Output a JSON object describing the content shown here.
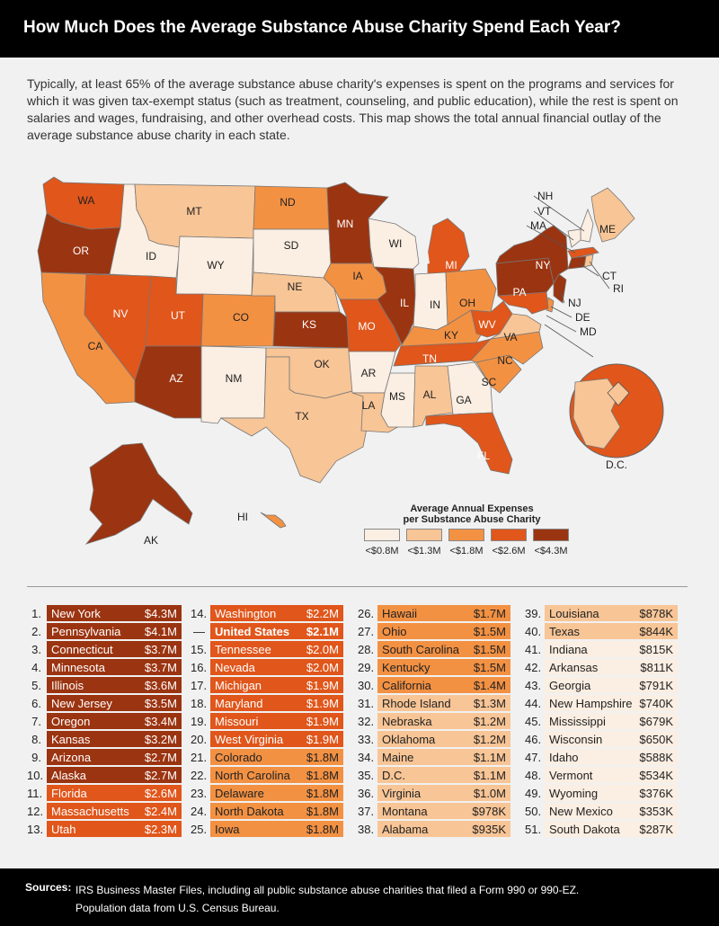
{
  "header": {
    "title": "How Much Does the Average Substance Abuse Charity Spend Each Year?"
  },
  "intro": "Typically, at least 65% of the average substance abuse charity's expenses is spent on the programs and services for which it was given tax-exempt status (such as treatment, counseling, and public education), while the rest is spent on salaries and wages, fundraising, and other overhead costs. This map shows the total annual financial outlay of the average substance abuse charity in each state.",
  "colors": {
    "tier1": "#fbeee2",
    "tier2": "#f8c596",
    "tier3": "#f39143",
    "tier4": "#e0561b",
    "tier5": "#9b3411"
  },
  "legend": {
    "title_line1": "Average Annual Expenses",
    "title_line2": "per Substance Abuse Charity",
    "labels": [
      "<$0.8M",
      "<$1.3M",
      "<$1.8M",
      "<$2.6M",
      "<$4.3M"
    ]
  },
  "map": {
    "states": [
      "WA",
      "OR",
      "CA",
      "ID",
      "NV",
      "MT",
      "WY",
      "UT",
      "AZ",
      "CO",
      "NM",
      "ND",
      "SD",
      "NE",
      "KS",
      "OK",
      "TX",
      "MN",
      "IA",
      "MO",
      "AR",
      "LA",
      "WI",
      "IL",
      "MS",
      "MI",
      "IN",
      "KY",
      "TN",
      "AL",
      "OH",
      "WV",
      "GA",
      "FL",
      "SC",
      "NC",
      "VA",
      "PA",
      "NY",
      "ME",
      "AK",
      "HI"
    ],
    "callouts": [
      "NH",
      "VT",
      "MA",
      "CT",
      "RI",
      "NJ",
      "DE",
      "MD",
      "D.C."
    ]
  },
  "chart_data": {
    "type": "table",
    "title": "How Much Does the Average Substance Abuse Charity Spend Each Year?",
    "unit": "USD per year",
    "rows": [
      {
        "rank": "1.",
        "name": "New York",
        "value": "$4.3M",
        "tier": 5
      },
      {
        "rank": "2.",
        "name": "Pennsylvania",
        "value": "$4.1M",
        "tier": 5
      },
      {
        "rank": "3.",
        "name": "Connecticut",
        "value": "$3.7M",
        "tier": 5
      },
      {
        "rank": "4.",
        "name": "Minnesota",
        "value": "$3.7M",
        "tier": 5
      },
      {
        "rank": "5.",
        "name": "Illinois",
        "value": "$3.6M",
        "tier": 5
      },
      {
        "rank": "6.",
        "name": "New Jersey",
        "value": "$3.5M",
        "tier": 5
      },
      {
        "rank": "7.",
        "name": "Oregon",
        "value": "$3.4M",
        "tier": 5
      },
      {
        "rank": "8.",
        "name": "Kansas",
        "value": "$3.2M",
        "tier": 5
      },
      {
        "rank": "9.",
        "name": "Arizona",
        "value": "$2.7M",
        "tier": 5
      },
      {
        "rank": "10.",
        "name": "Alaska",
        "value": "$2.7M",
        "tier": 5
      },
      {
        "rank": "11.",
        "name": "Florida",
        "value": "$2.6M",
        "tier": 4
      },
      {
        "rank": "12.",
        "name": "Massachusetts",
        "value": "$2.4M",
        "tier": 4
      },
      {
        "rank": "13.",
        "name": "Utah",
        "value": "$2.3M",
        "tier": 4
      },
      {
        "rank": "14.",
        "name": "Washington",
        "value": "$2.2M",
        "tier": 4
      },
      {
        "rank": "—",
        "name": "United States",
        "value": "$2.1M",
        "tier": 4,
        "bold": true
      },
      {
        "rank": "15.",
        "name": "Tennessee",
        "value": "$2.0M",
        "tier": 4
      },
      {
        "rank": "16.",
        "name": "Nevada",
        "value": "$2.0M",
        "tier": 4
      },
      {
        "rank": "17.",
        "name": "Michigan",
        "value": "$1.9M",
        "tier": 4
      },
      {
        "rank": "18.",
        "name": "Maryland",
        "value": "$1.9M",
        "tier": 4
      },
      {
        "rank": "19.",
        "name": "Missouri",
        "value": "$1.9M",
        "tier": 4
      },
      {
        "rank": "20.",
        "name": "West Virginia",
        "value": "$1.9M",
        "tier": 4
      },
      {
        "rank": "21.",
        "name": "Colorado",
        "value": "$1.8M",
        "tier": 3
      },
      {
        "rank": "22.",
        "name": "North Carolina",
        "value": "$1.8M",
        "tier": 3
      },
      {
        "rank": "23.",
        "name": "Delaware",
        "value": "$1.8M",
        "tier": 3
      },
      {
        "rank": "24.",
        "name": "North Dakota",
        "value": "$1.8M",
        "tier": 3
      },
      {
        "rank": "25.",
        "name": "Iowa",
        "value": "$1.8M",
        "tier": 3
      },
      {
        "rank": "26.",
        "name": "Hawaii",
        "value": "$1.7M",
        "tier": 3
      },
      {
        "rank": "27.",
        "name": "Ohio",
        "value": "$1.5M",
        "tier": 3
      },
      {
        "rank": "28.",
        "name": "South Carolina",
        "value": "$1.5M",
        "tier": 3
      },
      {
        "rank": "29.",
        "name": "Kentucky",
        "value": "$1.5M",
        "tier": 3
      },
      {
        "rank": "30.",
        "name": "California",
        "value": "$1.4M",
        "tier": 3
      },
      {
        "rank": "31.",
        "name": "Rhode Island",
        "value": "$1.3M",
        "tier": 2
      },
      {
        "rank": "32.",
        "name": "Nebraska",
        "value": "$1.2M",
        "tier": 2
      },
      {
        "rank": "33.",
        "name": "Oklahoma",
        "value": "$1.2M",
        "tier": 2
      },
      {
        "rank": "34.",
        "name": "Maine",
        "value": "$1.1M",
        "tier": 2
      },
      {
        "rank": "35.",
        "name": "D.C.",
        "value": "$1.1M",
        "tier": 2
      },
      {
        "rank": "36.",
        "name": "Virginia",
        "value": "$1.0M",
        "tier": 2
      },
      {
        "rank": "37.",
        "name": "Montana",
        "value": "$978K",
        "tier": 2
      },
      {
        "rank": "38.",
        "name": "Alabama",
        "value": "$935K",
        "tier": 2
      },
      {
        "rank": "39.",
        "name": "Louisiana",
        "value": "$878K",
        "tier": 2
      },
      {
        "rank": "40.",
        "name": "Texas",
        "value": "$844K",
        "tier": 2
      },
      {
        "rank": "41.",
        "name": "Indiana",
        "value": "$815K",
        "tier": 1
      },
      {
        "rank": "42.",
        "name": "Arkansas",
        "value": "$811K",
        "tier": 1
      },
      {
        "rank": "43.",
        "name": "Georgia",
        "value": "$791K",
        "tier": 1
      },
      {
        "rank": "44.",
        "name": "New Hampshire",
        "value": "$740K",
        "tier": 1
      },
      {
        "rank": "45.",
        "name": "Mississippi",
        "value": "$679K",
        "tier": 1
      },
      {
        "rank": "46.",
        "name": "Wisconsin",
        "value": "$650K",
        "tier": 1
      },
      {
        "rank": "47.",
        "name": "Idaho",
        "value": "$588K",
        "tier": 1
      },
      {
        "rank": "48.",
        "name": "Vermont",
        "value": "$534K",
        "tier": 1
      },
      {
        "rank": "49.",
        "name": "Wyoming",
        "value": "$376K",
        "tier": 1
      },
      {
        "rank": "50.",
        "name": "New Mexico",
        "value": "$353K",
        "tier": 1
      },
      {
        "rank": "51.",
        "name": "South Dakota",
        "value": "$287K",
        "tier": 1
      }
    ]
  },
  "footer": {
    "label": "Sources:",
    "line1": "IRS Business Master Files, including all public substance abuse charities that filed a Form 990 or 990-EZ.",
    "line2": "Population data from U.S. Census Bureau."
  }
}
